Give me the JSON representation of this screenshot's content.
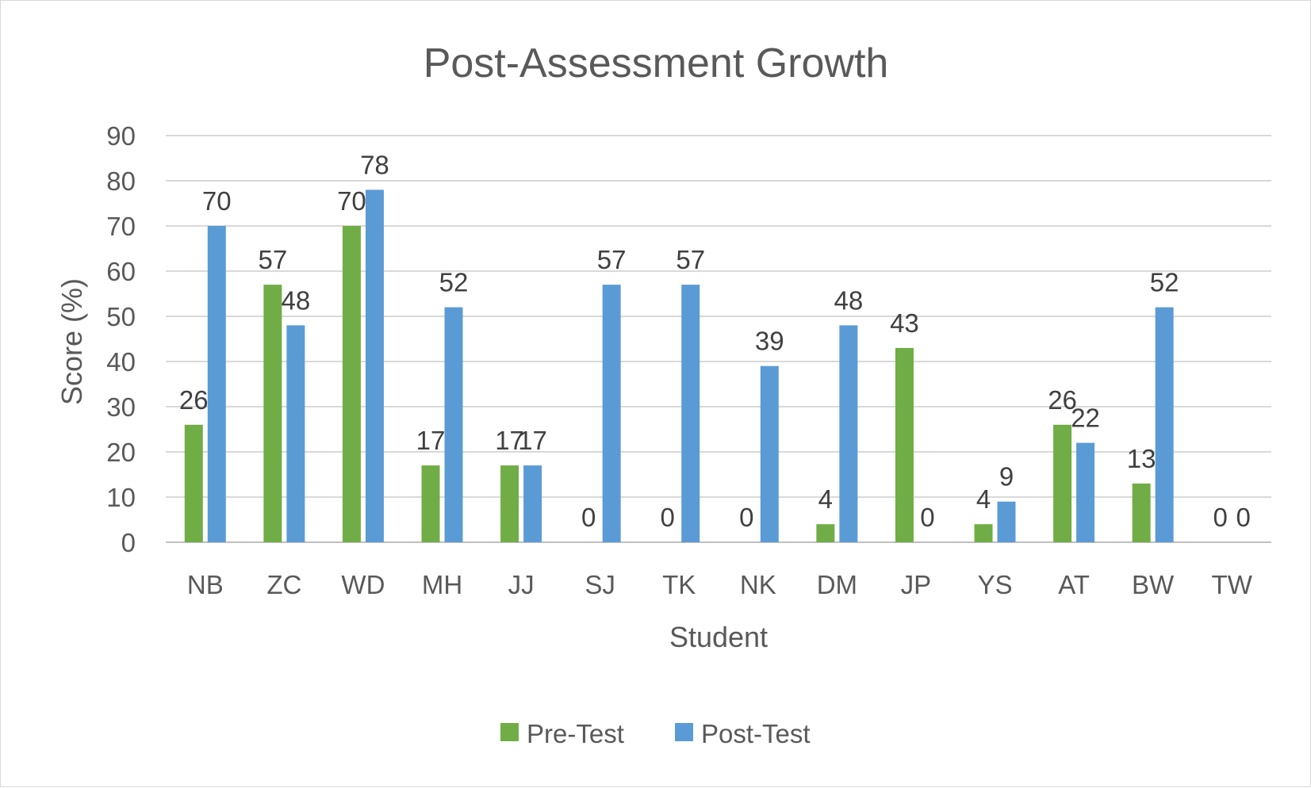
{
  "chart_data": {
    "type": "bar",
    "title": "Post-Assessment Growth",
    "xlabel": "Student",
    "ylabel": "Score (%)",
    "ylim": [
      0,
      90
    ],
    "ytick_step": 10,
    "yticks": [
      "0",
      "10",
      "20",
      "30",
      "40",
      "50",
      "60",
      "70",
      "80",
      "90"
    ],
    "grid": true,
    "legend_position": "bottom-center",
    "categories": [
      "NB",
      "ZC",
      "WD",
      "MH",
      "JJ",
      "SJ",
      "TK",
      "NK",
      "DM",
      "JP",
      "YS",
      "AT",
      "BW",
      "TW"
    ],
    "series": [
      {
        "name": "Pre-Test",
        "color": "#70ad47",
        "values": [
          26,
          57,
          70,
          17,
          17,
          0,
          0,
          0,
          4,
          43,
          4,
          26,
          13,
          0
        ]
      },
      {
        "name": "Post-Test",
        "color": "#5b9bd5",
        "values": [
          70,
          48,
          78,
          52,
          17,
          57,
          57,
          39,
          48,
          0,
          9,
          22,
          52,
          0
        ]
      }
    ],
    "data_labels": true
  }
}
